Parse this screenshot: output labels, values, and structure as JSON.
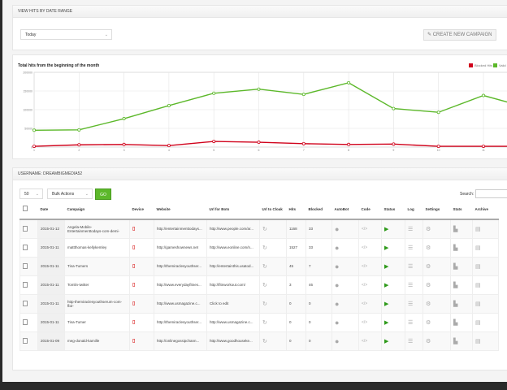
{
  "top_panel": {
    "title": "VIEW HITS BY DATE RANGE",
    "date_range": "Today",
    "create_button": "CREATE NEW CAMPAIGN"
  },
  "chart_data": {
    "type": "line",
    "title": "Total hits from the beginning of the month",
    "x": [
      1,
      2,
      3,
      4,
      5,
      6,
      7,
      8,
      9,
      10,
      11,
      12
    ],
    "x_ticks": [
      "1",
      "2",
      "3",
      "4",
      "5",
      "6",
      "7",
      "8",
      "9",
      "10",
      "11"
    ],
    "y_ticks": [
      "0",
      "50000",
      "100000",
      "150000",
      "200000"
    ],
    "ylim": [
      0,
      200000
    ],
    "grid": true,
    "legend_placement": "top-right",
    "series": [
      {
        "name": "Blocked Hits",
        "color": "#d0021b",
        "values": [
          2000,
          6000,
          7000,
          4000,
          15000,
          13000,
          9000,
          7000,
          8000,
          2000,
          2000,
          2000
        ]
      },
      {
        "name": "Valid Hits",
        "color": "#5cb82a",
        "values": [
          45000,
          46000,
          76000,
          111000,
          144000,
          155000,
          141000,
          172000,
          103000,
          93000,
          138000,
          105000
        ]
      }
    ]
  },
  "table_panel": {
    "title": "USERNAME: DREAMBIGMEDIA52",
    "page_size": "50",
    "bulk_actions": "Bulk Actions",
    "go": "GO",
    "search_label": "Search:",
    "columns": [
      "",
      "Date",
      "Campaign",
      "Device",
      "Website",
      "Url for Bots",
      "Url to Cloak",
      "Hits",
      "Blocked",
      "AutoBot",
      "Code",
      "Status",
      "Log",
      "Settings",
      "Stats",
      "Archive"
    ],
    "rows": [
      {
        "date": "2015-01-12",
        "campaign": "Angela-Mobile-Entertainmenttodays-com-demi-",
        "website": "http://entertainmenttodays...",
        "bots": "http://www.people.com/ar...",
        "hits": "1168",
        "blocked": "33"
      },
      {
        "date": "2015-01-11",
        "campaign": "mattthomas-kellykemley",
        "website": "http://gameshownews.net",
        "bots": "http://www.eonline.com/n...",
        "hits": "1527",
        "blocked": "33"
      },
      {
        "date": "2015-01-11",
        "campaign": "Tina-Tumers",
        "website": "http://themiraclesyouthser...",
        "bots": "http://entertainthis.usatod...",
        "hits": "45",
        "blocked": "7"
      },
      {
        "date": "2015-01-11",
        "campaign": "Tomlin-twitter",
        "website": "http://www.everydayfitnes...",
        "bots": "http://fitnworkout.com/",
        "hits": "3",
        "blocked": "46"
      },
      {
        "date": "2015-01-11",
        "campaign": "http-themiraclesyouthserum-com-fb2-",
        "website": "http://www.usmagazine.c...",
        "bots": "Click to edit",
        "hits": "0",
        "blocked": "0"
      },
      {
        "date": "2015-01-11",
        "campaign": "Tina-Tumer",
        "website": "http://themiraclesyouthser...",
        "bots": "http://www.usmagazine.c...",
        "hits": "0",
        "blocked": "0"
      },
      {
        "date": "2015-01-09",
        "campaign": "meg-donald-kamille",
        "website": "http://onlinegossipchann...",
        "bots": "http://www.goodhouseke...",
        "hits": "0",
        "blocked": "0"
      }
    ]
  }
}
